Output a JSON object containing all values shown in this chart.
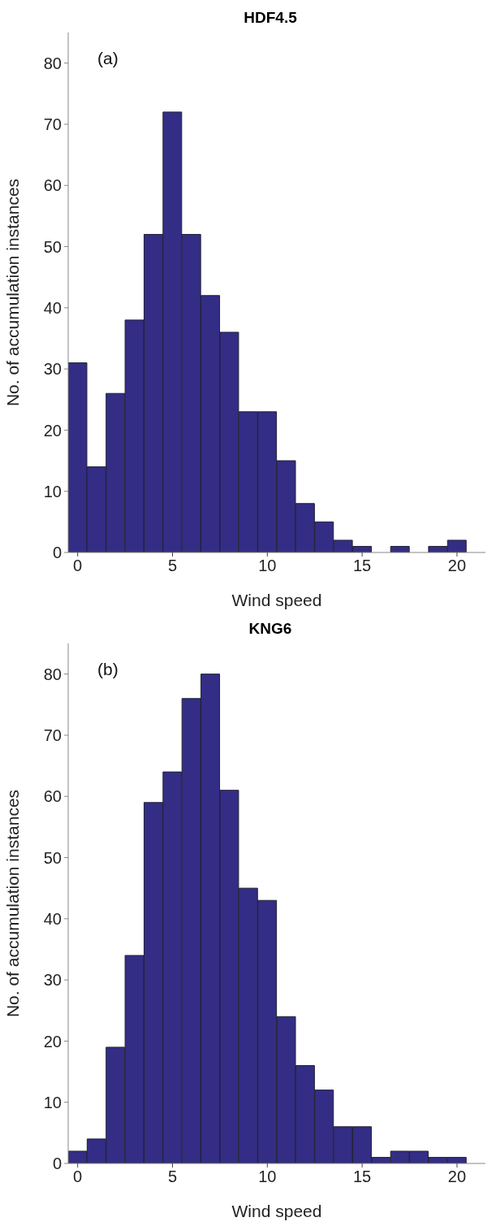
{
  "chart_data": [
    {
      "type": "histogram",
      "title": "HDF4.5",
      "xlabel": "Wind speed",
      "ylabel": "No. of accumulation instances",
      "annotations": [
        "(a)"
      ],
      "color": "#332d85",
      "bins": [
        -0.5,
        0.5,
        1.5,
        2.5,
        3.5,
        4.5,
        5.5,
        6.5,
        7.5,
        8.5,
        9.5,
        10.5,
        11.5,
        12.5,
        13.5,
        14.5,
        15.5,
        16.5,
        17.5,
        18.5,
        19.5,
        20.5
      ],
      "values": [
        31,
        14,
        26,
        38,
        52,
        72,
        52,
        42,
        36,
        23,
        23,
        15,
        8,
        5,
        2,
        1,
        0,
        1,
        0,
        1,
        2
      ],
      "xlim": [
        -0.5,
        21.5
      ],
      "xticks": [
        0,
        5,
        10,
        15,
        20
      ],
      "ylim": [
        0,
        85
      ],
      "yticks": [
        0,
        10,
        20,
        30,
        40,
        50,
        60,
        70,
        80
      ],
      "grid": false,
      "legend": false
    },
    {
      "type": "histogram",
      "title": "KNG6",
      "xlabel": "Wind speed",
      "ylabel": "No. of accumulation instances",
      "annotations": [
        "(b)"
      ],
      "color": "#332d85",
      "bins": [
        -0.5,
        0.5,
        1.5,
        2.5,
        3.5,
        4.5,
        5.5,
        6.5,
        7.5,
        8.5,
        9.5,
        10.5,
        11.5,
        12.5,
        13.5,
        14.5,
        15.5,
        16.5,
        17.5,
        18.5,
        19.5,
        20.5
      ],
      "values": [
        2,
        4,
        19,
        34,
        59,
        64,
        76,
        80,
        61,
        45,
        43,
        24,
        16,
        12,
        6,
        6,
        1,
        2,
        2,
        1,
        1
      ],
      "xlim": [
        -0.5,
        21.5
      ],
      "xticks": [
        0,
        5,
        10,
        15,
        20
      ],
      "ylim": [
        0,
        85
      ],
      "yticks": [
        0,
        10,
        20,
        30,
        40,
        50,
        60,
        70,
        80
      ],
      "grid": false,
      "legend": false
    }
  ]
}
